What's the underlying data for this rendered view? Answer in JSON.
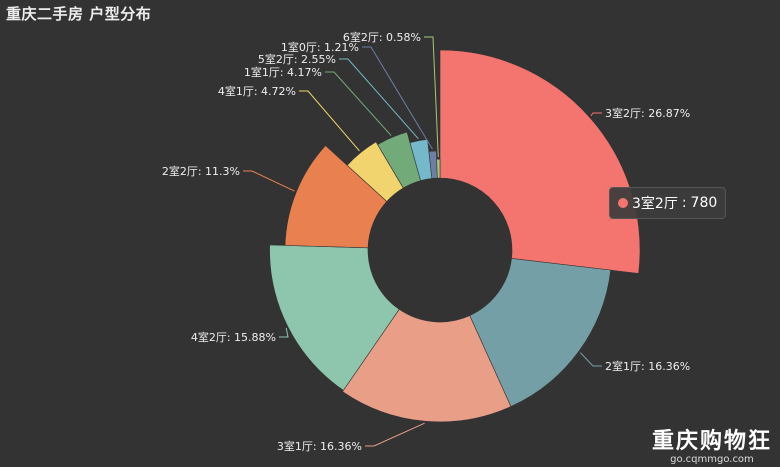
{
  "chart_data": {
    "type": "pie",
    "title": "重庆二手房 户型分布",
    "style": "nightingale-rose-donut",
    "start_angle_deg": 90,
    "series": [
      {
        "name": "3室2厅",
        "value": 780,
        "label": "3室2厅: 26.87%",
        "color": "#f4756f"
      },
      {
        "name": "2室1厅",
        "value": 475,
        "label": "2室1厅: 16.36%",
        "color": "#759fa6"
      },
      {
        "name": "3室1厅",
        "value": 475,
        "label": "3室1厅: 16.36%",
        "color": "#e99e88"
      },
      {
        "name": "4室2厅",
        "value": 461,
        "label": "4室2厅: 15.88%",
        "color": "#8ec5ad"
      },
      {
        "name": "2室2厅",
        "value": 328,
        "label": "2室2厅: 11.3%",
        "color": "#e8814f"
      },
      {
        "name": "4室1厅",
        "value": 137,
        "label": "4室1厅: 4.72%",
        "color": "#f2d46e"
      },
      {
        "name": "1室1厅",
        "value": 121,
        "label": "1室1厅: 4.17%",
        "color": "#72aa7a"
      },
      {
        "name": "5室2厅",
        "value": 74,
        "label": "5室2厅: 2.55%",
        "color": "#74b8c9"
      },
      {
        "name": "1室0厅",
        "value": 35,
        "label": "1室0厅: 1.21%",
        "color": "#6e7fa6"
      },
      {
        "name": "6室2厅",
        "value": 17,
        "label": "6室2厅: 0.58%",
        "color": "#a6c878"
      }
    ]
  },
  "tooltip": {
    "name": "3室2厅",
    "value": "780",
    "color": "#f4756f"
  },
  "watermark": {
    "main": "重庆购物狂",
    "sub": "go.cqmmgo.com"
  }
}
